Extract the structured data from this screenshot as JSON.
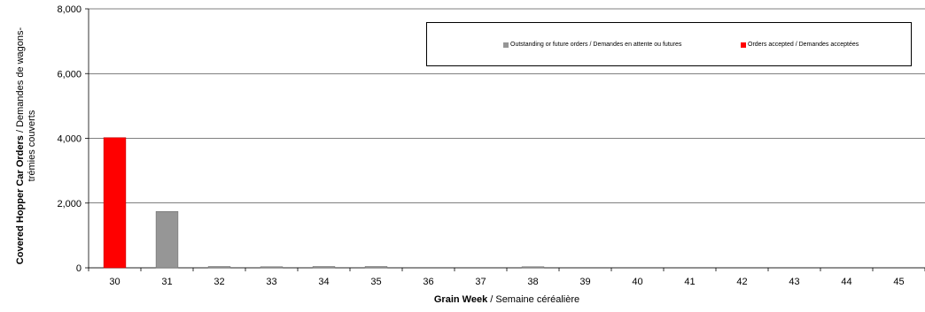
{
  "chart_data": {
    "type": "bar",
    "stacked": true,
    "title": "",
    "xlabel": {
      "bold": "Grain Week",
      "rest": " / Semaine céréalière"
    },
    "ylabel": {
      "bold": "Covered Hopper Car Orders",
      "rest": " / Demandes de wagons-trémies couverts"
    },
    "categories": [
      "30",
      "31",
      "32",
      "33",
      "34",
      "35",
      "36",
      "37",
      "38",
      "39",
      "40",
      "41",
      "42",
      "43",
      "44",
      "45"
    ],
    "ylim": [
      0,
      8000
    ],
    "yticks": [
      "0",
      "2,000",
      "4,000",
      "6,000",
      "8,000"
    ],
    "ytick_values": [
      0,
      2000,
      4000,
      6000,
      8000
    ],
    "grid": true,
    "legend_position": "top-right",
    "series": [
      {
        "name": "Orders accepted / Demandes acceptées",
        "color": "#ff0000",
        "values": [
          4020,
          0,
          0,
          0,
          0,
          0,
          0,
          0,
          0,
          0,
          0,
          0,
          0,
          0,
          0,
          0
        ]
      },
      {
        "name": "Outstanding or future orders / Demandes en attente ou futures",
        "color": "#969696",
        "values": [
          0,
          1740,
          40,
          20,
          40,
          40,
          0,
          0,
          30,
          0,
          0,
          0,
          0,
          0,
          0,
          0
        ]
      }
    ]
  }
}
